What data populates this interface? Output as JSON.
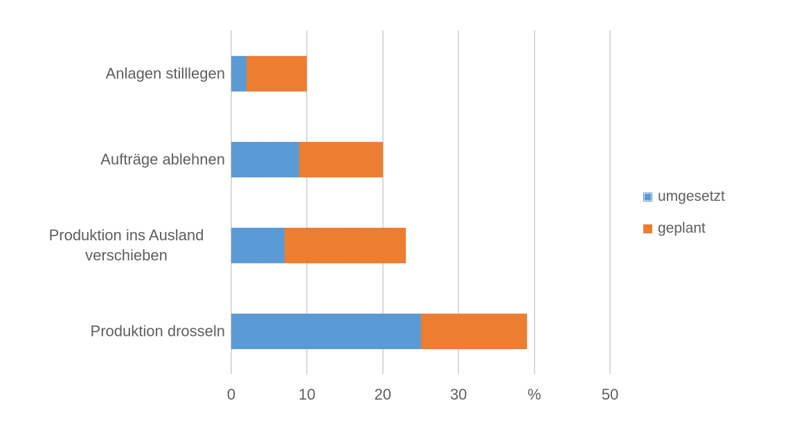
{
  "chart_data": {
    "type": "bar",
    "orientation": "horizontal",
    "stacked": true,
    "title": "",
    "categories": [
      "Anlagen stilllegen",
      "Aufträge ablehnen",
      "Produktion ins Ausland verschieben",
      "Produktion drosseln"
    ],
    "series": [
      {
        "name": "umgesetzt",
        "color": "#5B9BD5",
        "values": [
          2,
          9,
          7,
          25
        ]
      },
      {
        "name": "geplant",
        "color": "#ED7D31",
        "values": [
          8,
          11,
          16,
          14
        ]
      }
    ],
    "totals": [
      10,
      20,
      23,
      39
    ],
    "x_axis": {
      "min": 0,
      "max": 50,
      "tick_step": 10,
      "tick_labels": [
        "0",
        "10",
        "20",
        "30",
        "%",
        "50"
      ],
      "unit": "%"
    },
    "grid": "vertical-only",
    "legend_position": "right",
    "colors": {
      "gridline": "#D9D9D9",
      "text": "#5E5E5E",
      "background": "#FFFFFF"
    }
  }
}
